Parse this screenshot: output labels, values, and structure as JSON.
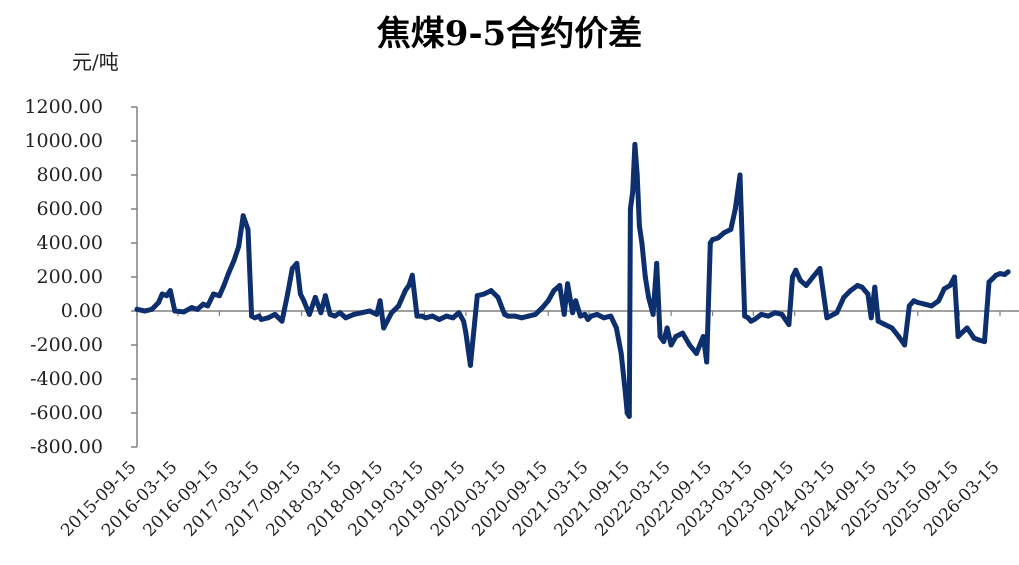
{
  "chart_data": {
    "type": "line",
    "title": "焦煤9-5合约价差",
    "ylabel": "元/吨",
    "xlabel": "",
    "ylim": [
      -800,
      1200
    ],
    "yticks": [
      "1200.00",
      "1000.00",
      "800.00",
      "600.00",
      "400.00",
      "200.00",
      "0.00",
      "-200.00",
      "-400.00",
      "-600.00",
      "-800.00"
    ],
    "xticks": [
      "2015-09-15",
      "2016-03-15",
      "2016-09-15",
      "2017-03-15",
      "2017-09-15",
      "2018-03-15",
      "2018-09-15",
      "2019-03-15",
      "2019-09-15",
      "2020-03-15",
      "2020-09-15",
      "2021-03-15",
      "2021-09-15",
      "2022-03-15",
      "2022-09-15",
      "2023-03-15",
      "2023-09-15",
      "2024-03-15",
      "2024-09-15",
      "2025-03-15",
      "2025-09-15",
      "2026-03-15"
    ],
    "grid": false,
    "line_color": "#0d2f6e",
    "series": [
      {
        "x": [
          "2015-09-15",
          "2015-10-20",
          "2015-11-20",
          "2015-12-20",
          "2016-01-05",
          "2016-01-25",
          "2016-02-10",
          "2016-03-01",
          "2016-04-10",
          "2016-05-15",
          "2016-06-10",
          "2016-07-05",
          "2016-07-25",
          "2016-08-20",
          "2016-09-15",
          "2016-10-05",
          "2016-10-25",
          "2016-11-20",
          "2016-12-10",
          "2016-12-30",
          "2017-01-20",
          "2017-02-05",
          "2017-02-20",
          "2017-03-10",
          "2017-03-20",
          "2017-04-20",
          "2017-05-20",
          "2017-06-20",
          "2017-07-15",
          "2017-08-05",
          "2017-08-25",
          "2017-09-10",
          "2017-09-25",
          "2017-10-20",
          "2017-11-15",
          "2017-12-10",
          "2017-12-30",
          "2018-01-20",
          "2018-02-10",
          "2018-03-05",
          "2018-03-30",
          "2018-05-05",
          "2018-06-10",
          "2018-07-15",
          "2018-08-15",
          "2018-08-30",
          "2018-09-15",
          "2018-10-20",
          "2018-11-20",
          "2018-12-20",
          "2019-01-05",
          "2019-01-20",
          "2019-02-10",
          "2019-03-05",
          "2019-03-20",
          "2019-04-20",
          "2019-05-20",
          "2019-06-20",
          "2019-07-20",
          "2019-08-15",
          "2019-09-05",
          "2019-09-15",
          "2019-10-05",
          "2019-11-05",
          "2019-12-05",
          "2020-01-05",
          "2020-02-05",
          "2020-03-05",
          "2020-03-20",
          "2020-04-20",
          "2020-05-20",
          "2020-06-20",
          "2020-07-20",
          "2020-08-20",
          "2020-09-15",
          "2020-10-10",
          "2020-11-05",
          "2020-11-25",
          "2020-12-10",
          "2021-01-01",
          "2021-01-15",
          "2021-02-05",
          "2021-02-25",
          "2021-03-10",
          "2021-03-25",
          "2021-04-20",
          "2021-05-20",
          "2021-06-20",
          "2021-07-15",
          "2021-08-05",
          "2021-08-25",
          "2021-09-01",
          "2021-09-10",
          "2021-09-15",
          "2021-09-25",
          "2021-10-05",
          "2021-10-15",
          "2021-10-25",
          "2021-11-05",
          "2021-11-20",
          "2021-12-05",
          "2021-12-25",
          "2022-01-10",
          "2022-01-25",
          "2022-02-10",
          "2022-02-25",
          "2022-03-15",
          "2022-04-05",
          "2022-05-05",
          "2022-06-05",
          "2022-07-05",
          "2022-08-05",
          "2022-08-20",
          "2022-09-05",
          "2022-09-15",
          "2022-10-10",
          "2022-11-05",
          "2022-12-05",
          "2022-12-25",
          "2023-01-15",
          "2023-02-05",
          "2023-02-20",
          "2023-03-05",
          "2023-03-20",
          "2023-04-20",
          "2023-05-20",
          "2023-06-20",
          "2023-07-20",
          "2023-08-20",
          "2023-09-05",
          "2023-09-20",
          "2023-10-10",
          "2023-11-05",
          "2023-12-05",
          "2024-01-05",
          "2024-02-05",
          "2024-02-20",
          "2024-03-05",
          "2024-03-20",
          "2024-04-20",
          "2024-05-20",
          "2024-06-20",
          "2024-07-10",
          "2024-08-05",
          "2024-08-20",
          "2024-09-05",
          "2024-09-20",
          "2024-10-20",
          "2024-11-20",
          "2024-12-20",
          "2025-01-15",
          "2025-02-05",
          "2025-02-25",
          "2025-03-15",
          "2025-04-15",
          "2025-05-15",
          "2025-06-15",
          "2025-07-10",
          "2025-08-05",
          "2025-08-25",
          "2025-09-10",
          "2025-09-25",
          "2025-10-20",
          "2025-11-20",
          "2025-12-10",
          "2026-01-05",
          "2026-01-25",
          "2026-02-10",
          "2026-02-25",
          "2026-03-15",
          "2026-04-05",
          "2026-04-20"
        ],
        "values": [
          10,
          0,
          10,
          50,
          100,
          90,
          120,
          0,
          -5,
          20,
          10,
          40,
          30,
          100,
          90,
          150,
          220,
          300,
          380,
          560,
          480,
          -30,
          -40,
          -30,
          -50,
          -40,
          -20,
          -60,
          100,
          250,
          280,
          100,
          60,
          -20,
          80,
          -10,
          90,
          -20,
          -30,
          -10,
          -40,
          -20,
          -10,
          0,
          -20,
          60,
          -100,
          -10,
          30,
          120,
          150,
          210,
          -30,
          -30,
          -40,
          -30,
          -50,
          -30,
          -40,
          -10,
          -60,
          -130,
          -320,
          90,
          100,
          120,
          80,
          -20,
          -30,
          -30,
          -40,
          -30,
          -20,
          20,
          60,
          120,
          150,
          -20,
          160,
          -10,
          60,
          -30,
          -20,
          -50,
          -30,
          -20,
          -40,
          -30,
          -100,
          -250,
          -500,
          -600,
          -620,
          600,
          700,
          980,
          800,
          500,
          400,
          200,
          80,
          -20,
          280,
          -150,
          -180,
          -100,
          -200,
          -150,
          -130,
          -200,
          -250,
          -150,
          -300,
          400,
          420,
          430,
          460,
          480,
          600,
          800,
          -30,
          -40,
          -60,
          -50,
          -20,
          -30,
          -10,
          -20,
          -80,
          200,
          240,
          180,
          150,
          200,
          250,
          -40,
          -30,
          -20,
          -10,
          80,
          120,
          150,
          140,
          100,
          -40,
          140,
          -60,
          -80,
          -100,
          -150,
          -200,
          30,
          60,
          50,
          40,
          30,
          60,
          130,
          150,
          200,
          -150,
          -130,
          -100,
          -160,
          -170,
          -180,
          170,
          190,
          210,
          220,
          215,
          230
        ]
      }
    ]
  }
}
